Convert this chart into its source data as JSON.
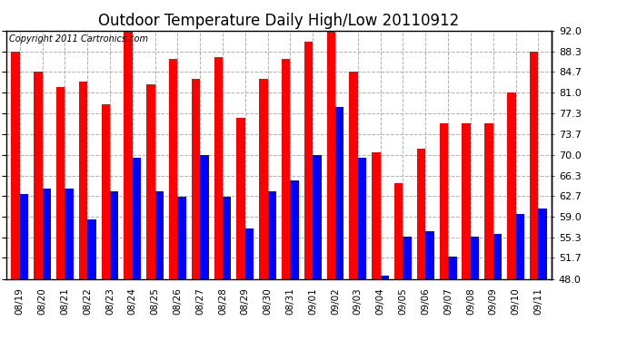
{
  "title": "Outdoor Temperature Daily High/Low 20110912",
  "copyright": "Copyright 2011 Cartronics.com",
  "dates": [
    "08/19",
    "08/20",
    "08/21",
    "08/22",
    "08/23",
    "08/24",
    "08/25",
    "08/26",
    "08/27",
    "08/28",
    "08/29",
    "08/30",
    "08/31",
    "09/01",
    "09/02",
    "09/03",
    "09/04",
    "09/05",
    "09/06",
    "09/07",
    "09/08",
    "09/09",
    "09/10",
    "09/11"
  ],
  "highs": [
    88.3,
    84.7,
    82.0,
    83.0,
    79.0,
    92.0,
    82.5,
    87.0,
    83.5,
    87.3,
    76.5,
    83.5,
    87.0,
    90.0,
    92.5,
    84.7,
    70.5,
    65.0,
    71.0,
    75.5,
    75.5,
    75.5,
    81.0,
    88.3
  ],
  "lows": [
    63.0,
    64.0,
    64.0,
    58.5,
    63.5,
    69.5,
    63.5,
    62.5,
    70.0,
    62.5,
    57.0,
    63.5,
    65.5,
    70.0,
    78.5,
    69.5,
    48.5,
    55.5,
    56.5,
    52.0,
    55.5,
    56.0,
    59.5,
    60.5
  ],
  "high_color": "#ff0000",
  "low_color": "#0000ff",
  "bg_color": "#ffffff",
  "grid_color": "#b0b0b0",
  "ymin": 48.0,
  "ymax": 92.0,
  "yticks": [
    48.0,
    51.7,
    55.3,
    59.0,
    62.7,
    66.3,
    70.0,
    73.7,
    77.3,
    81.0,
    84.7,
    88.3,
    92.0
  ],
  "title_fontsize": 12,
  "copyright_fontsize": 7,
  "bar_width": 0.38
}
